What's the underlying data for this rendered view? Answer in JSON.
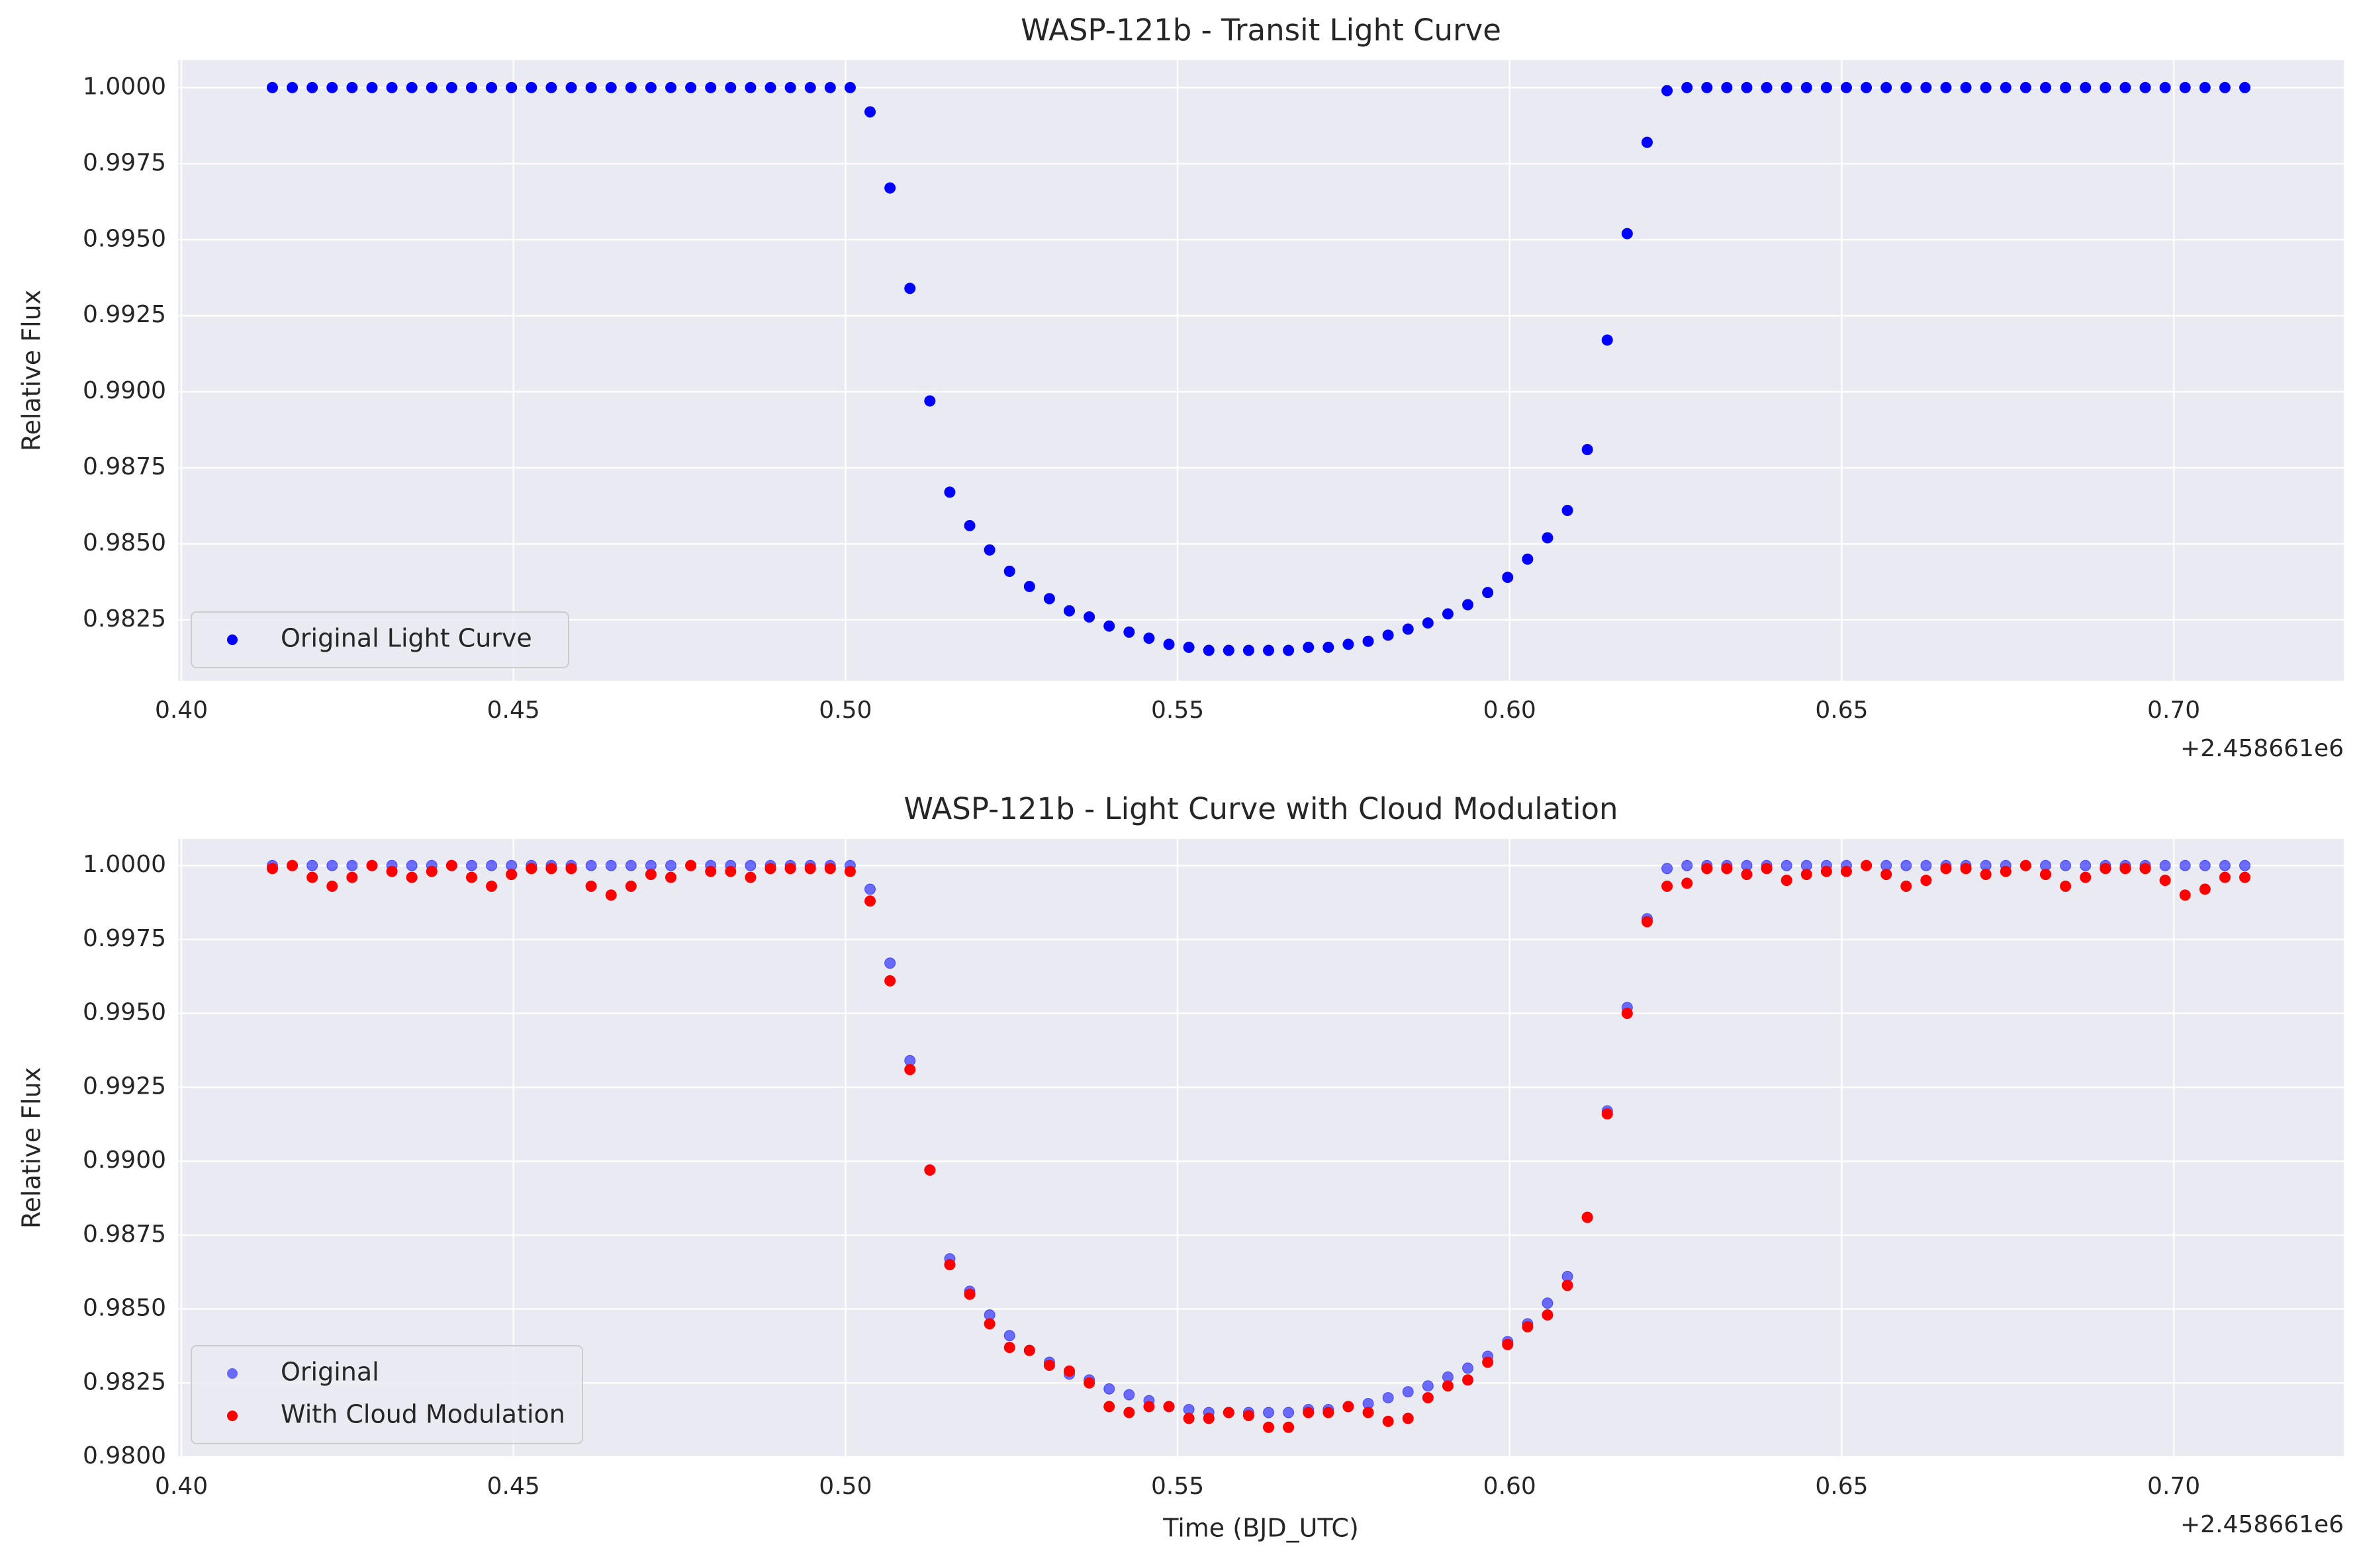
{
  "chart_data": [
    {
      "type": "scatter",
      "title": "WASP-121b - Transit Light Curve",
      "y_label": "Relative Flux",
      "x_offset_label": "+2.458661e6",
      "x": [
        0.4137,
        0.4167,
        0.4197,
        0.4227,
        0.4257,
        0.4287,
        0.4317,
        0.4347,
        0.4377,
        0.4407,
        0.4437,
        0.4467,
        0.4497,
        0.4527,
        0.4557,
        0.4587,
        0.4617,
        0.4647,
        0.4677,
        0.4707,
        0.4737,
        0.4767,
        0.4797,
        0.4827,
        0.4857,
        0.4887,
        0.4917,
        0.4947,
        0.4977,
        0.5007,
        0.5037,
        0.5067,
        0.5097,
        0.5127,
        0.5157,
        0.5187,
        0.5217,
        0.5247,
        0.5277,
        0.5307,
        0.5337,
        0.5367,
        0.5397,
        0.5427,
        0.5457,
        0.5487,
        0.5517,
        0.5547,
        0.5577,
        0.5607,
        0.5637,
        0.5667,
        0.5697,
        0.5727,
        0.5757,
        0.5787,
        0.5817,
        0.5847,
        0.5877,
        0.5907,
        0.5937,
        0.5967,
        0.5997,
        0.6027,
        0.6057,
        0.6087,
        0.6117,
        0.6147,
        0.6177,
        0.6207,
        0.6237,
        0.6267,
        0.6297,
        0.6327,
        0.6357,
        0.6387,
        0.6417,
        0.6447,
        0.6477,
        0.6507,
        0.6537,
        0.6567,
        0.6597,
        0.6627,
        0.6657,
        0.6687,
        0.6717,
        0.6747,
        0.6777,
        0.6807,
        0.6837,
        0.6867,
        0.6897,
        0.6927,
        0.6957,
        0.6987,
        0.7017,
        0.7047,
        0.7077,
        0.7107
      ],
      "series": [
        {
          "name": "Original Light Curve",
          "color": "#0000ff",
          "alpha": 1,
          "values": [
            1.0,
            1.0,
            1.0,
            1.0,
            1.0,
            1.0,
            1.0,
            1.0,
            1.0,
            1.0,
            1.0,
            1.0,
            1.0,
            1.0,
            1.0,
            1.0,
            1.0,
            1.0,
            1.0,
            1.0,
            1.0,
            1.0,
            1.0,
            1.0,
            1.0,
            1.0,
            1.0,
            1.0,
            1.0,
            1.0,
            0.9992,
            0.9967,
            0.9934,
            0.9897,
            0.9867,
            0.9856,
            0.9848,
            0.9841,
            0.9836,
            0.9832,
            0.9828,
            0.9826,
            0.9823,
            0.9821,
            0.9819,
            0.9817,
            0.9816,
            0.9815,
            0.9815,
            0.9815,
            0.9815,
            0.9815,
            0.9816,
            0.9816,
            0.9817,
            0.9818,
            0.982,
            0.9822,
            0.9824,
            0.9827,
            0.983,
            0.9834,
            0.9839,
            0.9845,
            0.9852,
            0.9861,
            0.9881,
            0.9917,
            0.9952,
            0.9982,
            0.9999,
            1.0,
            1.0,
            1.0,
            1.0,
            1.0,
            1.0,
            1.0,
            1.0,
            1.0,
            1.0,
            1.0,
            1.0,
            1.0,
            1.0,
            1.0,
            1.0,
            1.0,
            1.0,
            1.0,
            1.0,
            1.0,
            1.0,
            1.0,
            1.0,
            1.0,
            1.0,
            1.0,
            1.0,
            1.0
          ]
        }
      ],
      "xlim": [
        0.3995,
        0.7256
      ],
      "xticks": [
        {
          "value": 0.4,
          "label": "0.40"
        },
        0.45,
        {
          "value": 0.5,
          "label": "0.50"
        },
        0.55,
        {
          "value": 0.6,
          "label": "0.60"
        },
        0.65,
        {
          "value": 0.7,
          "label": "0.70"
        }
      ],
      "ylim": [
        0.9805,
        1.0009
      ],
      "yticks": [
        0.9825,
        {
          "value": 0.985,
          "label": "0.9850"
        },
        0.9875,
        {
          "value": 0.99,
          "label": "0.9900"
        },
        0.9925,
        {
          "value": 0.995,
          "label": "0.9950"
        },
        0.9975,
        {
          "value": 1.0,
          "label": "1.0000"
        }
      ],
      "grid": true,
      "legend": "lower left"
    },
    {
      "type": "scatter",
      "title": "WASP-121b - Light Curve with Cloud Modulation",
      "x_label": "Time (BJD_UTC)",
      "y_label": "Relative Flux",
      "x_offset_label": "+2.458661e6",
      "x": [
        0.4137,
        0.4167,
        0.4197,
        0.4227,
        0.4257,
        0.4287,
        0.4317,
        0.4347,
        0.4377,
        0.4407,
        0.4437,
        0.4467,
        0.4497,
        0.4527,
        0.4557,
        0.4587,
        0.4617,
        0.4647,
        0.4677,
        0.4707,
        0.4737,
        0.4767,
        0.4797,
        0.4827,
        0.4857,
        0.4887,
        0.4917,
        0.4947,
        0.4977,
        0.5007,
        0.5037,
        0.5067,
        0.5097,
        0.5127,
        0.5157,
        0.5187,
        0.5217,
        0.5247,
        0.5277,
        0.5307,
        0.5337,
        0.5367,
        0.5397,
        0.5427,
        0.5457,
        0.5487,
        0.5517,
        0.5547,
        0.5577,
        0.5607,
        0.5637,
        0.5667,
        0.5697,
        0.5727,
        0.5757,
        0.5787,
        0.5817,
        0.5847,
        0.5877,
        0.5907,
        0.5937,
        0.5967,
        0.5997,
        0.6027,
        0.6057,
        0.6087,
        0.6117,
        0.6147,
        0.6177,
        0.6207,
        0.6237,
        0.6267,
        0.6297,
        0.6327,
        0.6357,
        0.6387,
        0.6417,
        0.6447,
        0.6477,
        0.6507,
        0.6537,
        0.6567,
        0.6597,
        0.6627,
        0.6657,
        0.6687,
        0.6717,
        0.6747,
        0.6777,
        0.6807,
        0.6837,
        0.6867,
        0.6897,
        0.6927,
        0.6957,
        0.6987,
        0.7017,
        0.7047,
        0.7077,
        0.7107
      ],
      "series": [
        {
          "name": "Original",
          "color": "#0000ff",
          "alpha": 0.55,
          "values": [
            1.0,
            1.0,
            1.0,
            1.0,
            1.0,
            1.0,
            1.0,
            1.0,
            1.0,
            1.0,
            1.0,
            1.0,
            1.0,
            1.0,
            1.0,
            1.0,
            1.0,
            1.0,
            1.0,
            1.0,
            1.0,
            1.0,
            1.0,
            1.0,
            1.0,
            1.0,
            1.0,
            1.0,
            1.0,
            1.0,
            0.9992,
            0.9967,
            0.9934,
            0.9897,
            0.9867,
            0.9856,
            0.9848,
            0.9841,
            0.9836,
            0.9832,
            0.9828,
            0.9826,
            0.9823,
            0.9821,
            0.9819,
            0.9817,
            0.9816,
            0.9815,
            0.9815,
            0.9815,
            0.9815,
            0.9815,
            0.9816,
            0.9816,
            0.9817,
            0.9818,
            0.982,
            0.9822,
            0.9824,
            0.9827,
            0.983,
            0.9834,
            0.9839,
            0.9845,
            0.9852,
            0.9861,
            0.9881,
            0.9917,
            0.9952,
            0.9982,
            0.9999,
            1.0,
            1.0,
            1.0,
            1.0,
            1.0,
            1.0,
            1.0,
            1.0,
            1.0,
            1.0,
            1.0,
            1.0,
            1.0,
            1.0,
            1.0,
            1.0,
            1.0,
            1.0,
            1.0,
            1.0,
            1.0,
            1.0,
            1.0,
            1.0,
            1.0,
            1.0,
            1.0,
            1.0,
            1.0
          ]
        },
        {
          "name": "With Cloud Modulation",
          "color": "#ff0000",
          "alpha": 1,
          "values": [
            0.9999,
            1.0,
            0.9996,
            0.9993,
            0.9996,
            1.0,
            0.9998,
            0.9996,
            0.9998,
            1.0,
            0.9996,
            0.9993,
            0.9997,
            0.9999,
            0.9999,
            0.9999,
            0.9993,
            0.999,
            0.9993,
            0.9997,
            0.9996,
            1.0,
            0.9998,
            0.9998,
            0.9996,
            0.9999,
            0.9999,
            0.9999,
            0.9999,
            0.9998,
            0.9988,
            0.9961,
            0.9931,
            0.9897,
            0.9865,
            0.9855,
            0.9845,
            0.9837,
            0.9836,
            0.9831,
            0.9829,
            0.9825,
            0.9817,
            0.9815,
            0.9817,
            0.9817,
            0.9813,
            0.9813,
            0.9815,
            0.9814,
            0.981,
            0.981,
            0.9815,
            0.9815,
            0.9817,
            0.9815,
            0.9812,
            0.9813,
            0.982,
            0.9824,
            0.9826,
            0.9832,
            0.9838,
            0.9844,
            0.9848,
            0.9858,
            0.9881,
            0.9916,
            0.995,
            0.9981,
            0.9993,
            0.9994,
            0.9999,
            0.9999,
            0.9997,
            0.9999,
            0.9995,
            0.9997,
            0.9998,
            0.9998,
            1.0,
            0.9997,
            0.9993,
            0.9995,
            0.9999,
            0.9999,
            0.9997,
            0.9998,
            1.0,
            0.9997,
            0.9993,
            0.9996,
            0.9999,
            0.9999,
            0.9999,
            0.9995,
            0.999,
            0.9992,
            0.9996,
            0.9996
          ]
        }
      ],
      "xlim": [
        0.3995,
        0.7256
      ],
      "xticks": [
        {
          "value": 0.4,
          "label": "0.40"
        },
        0.45,
        {
          "value": 0.5,
          "label": "0.50"
        },
        0.55,
        {
          "value": 0.6,
          "label": "0.60"
        },
        0.65,
        {
          "value": 0.7,
          "label": "0.70"
        }
      ],
      "ylim": [
        0.98,
        1.0009
      ],
      "yticks": [
        {
          "value": 0.98,
          "label": "0.9800"
        },
        0.9825,
        {
          "value": 0.985,
          "label": "0.9850"
        },
        0.9875,
        {
          "value": 0.99,
          "label": "0.9900"
        },
        0.9925,
        {
          "value": 0.995,
          "label": "0.9950"
        },
        0.9975,
        {
          "value": 1.0,
          "label": "1.0000"
        }
      ],
      "grid": true,
      "legend": "lower left"
    }
  ]
}
